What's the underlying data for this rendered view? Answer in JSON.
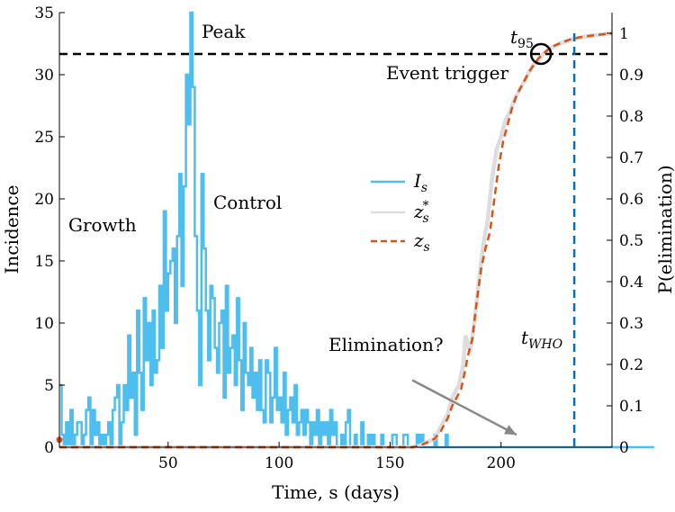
{
  "chart_data": {
    "type": "line",
    "xlabel": "Time, s (days)",
    "ylabel_left": "Incidence",
    "ylabel_right": "P(elimination)",
    "xlim": [
      1,
      250
    ],
    "ylim_left": [
      0,
      35
    ],
    "ylim_right": [
      0,
      1.05
    ],
    "xticks": [
      50,
      100,
      150,
      200
    ],
    "yticks_left": [
      0,
      5,
      10,
      15,
      20,
      25,
      30,
      35
    ],
    "yticks_right": [
      0,
      0.1,
      0.2,
      0.3,
      0.4,
      0.5,
      0.6,
      0.7,
      0.8,
      0.9,
      1
    ],
    "grid": false,
    "legend_position": "center",
    "series": [
      {
        "name": "I_s",
        "legend_main": "I",
        "legend_sub": "s",
        "style": "stairs",
        "axis": "left",
        "color": "#4DBEEE",
        "x_start": 1,
        "values": [
          5,
          1,
          0,
          2,
          0,
          3,
          0,
          1,
          2,
          2,
          0,
          1,
          3,
          4,
          0,
          3,
          1,
          2,
          0,
          1,
          0,
          1,
          2,
          0,
          3,
          4,
          5,
          0,
          2,
          5,
          3,
          9,
          4,
          6,
          1,
          11,
          6,
          3,
          12,
          7,
          10,
          5,
          11,
          6,
          7,
          13,
          8,
          19,
          11,
          14,
          15,
          16,
          10,
          17,
          22,
          13,
          21,
          30,
          26,
          35,
          29,
          17,
          11,
          5,
          22,
          16,
          11,
          7,
          13,
          12,
          8,
          6,
          10,
          11,
          4,
          13,
          6,
          8,
          9,
          5,
          12,
          7,
          3,
          10,
          6,
          5,
          8,
          4,
          6,
          3,
          7,
          3,
          2,
          7,
          6,
          2,
          4,
          8,
          3,
          4,
          2,
          6,
          1,
          3,
          4,
          2,
          5,
          1,
          2,
          3,
          1,
          3,
          2,
          0,
          2,
          1,
          3,
          0,
          2,
          1,
          2,
          0,
          3,
          1,
          2,
          0,
          0,
          1,
          0,
          2,
          3,
          0,
          0,
          1,
          0,
          0,
          2,
          0,
          0,
          1,
          0,
          1,
          0,
          0,
          0,
          1,
          0,
          0,
          0,
          0,
          1,
          1,
          0,
          0,
          0,
          1,
          1,
          0,
          0,
          0,
          0,
          1,
          0,
          1,
          0,
          0,
          0,
          0,
          0,
          1,
          0,
          0,
          0,
          0,
          1,
          0,
          0,
          0,
          0,
          0,
          0,
          0,
          0,
          0,
          0,
          0,
          0,
          0,
          0,
          0,
          0,
          0,
          0,
          0,
          0,
          0,
          0,
          0,
          0,
          0,
          0,
          0,
          0,
          0,
          0,
          0,
          0,
          0,
          0,
          0,
          0,
          0,
          0,
          0,
          0,
          0,
          0,
          0,
          0,
          0,
          0,
          0,
          0,
          0,
          0,
          0,
          0,
          0,
          0,
          0,
          0,
          0,
          0,
          0,
          0,
          0,
          0,
          0,
          0,
          0,
          0,
          0,
          0,
          0,
          0,
          0,
          0,
          0,
          0,
          0,
          0,
          0,
          0,
          0,
          0,
          0,
          0,
          0,
          0,
          0,
          0,
          0,
          0,
          0,
          0,
          0,
          0,
          0
        ]
      },
      {
        "name": "z_s^*",
        "legend_main": "z",
        "legend_sub": "s",
        "legend_sup": "*",
        "style": "line",
        "axis": "right",
        "color": "#dddddd",
        "points": [
          [
            1,
            0
          ],
          [
            160,
            0
          ],
          [
            163,
            0.003
          ],
          [
            166,
            0.01
          ],
          [
            170,
            0.02
          ],
          [
            173,
            0.05
          ],
          [
            176,
            0.08
          ],
          [
            178,
            0.12
          ],
          [
            181,
            0.15
          ],
          [
            183,
            0.2
          ],
          [
            184,
            0.27
          ],
          [
            186,
            0.23
          ],
          [
            188,
            0.3
          ],
          [
            190,
            0.4
          ],
          [
            192,
            0.49
          ],
          [
            194,
            0.55
          ],
          [
            196,
            0.65
          ],
          [
            198,
            0.72
          ],
          [
            200,
            0.75
          ],
          [
            202,
            0.79
          ],
          [
            204,
            0.81
          ],
          [
            206,
            0.84
          ],
          [
            208,
            0.86
          ],
          [
            210,
            0.88
          ],
          [
            212,
            0.9
          ],
          [
            214,
            0.92
          ],
          [
            216,
            0.93
          ],
          [
            218,
            0.945
          ],
          [
            220,
            0.955
          ],
          [
            222,
            0.963
          ],
          [
            225,
            0.972
          ],
          [
            228,
            0.978
          ],
          [
            232,
            0.985
          ],
          [
            236,
            0.99
          ],
          [
            240,
            0.994
          ],
          [
            245,
            0.997
          ],
          [
            250,
            1.0
          ]
        ]
      },
      {
        "name": "z_s",
        "legend_main": "z",
        "legend_sub": "s",
        "style": "dashed",
        "axis": "right",
        "color": "#D95319",
        "points": [
          [
            1,
            0
          ],
          [
            160,
            0
          ],
          [
            163,
            0.003
          ],
          [
            166,
            0.01
          ],
          [
            170,
            0.02
          ],
          [
            173,
            0.04
          ],
          [
            176,
            0.07
          ],
          [
            178,
            0.1
          ],
          [
            180,
            0.12
          ],
          [
            182,
            0.14
          ],
          [
            184,
            0.19
          ],
          [
            185,
            0.22
          ],
          [
            187,
            0.26
          ],
          [
            189,
            0.35
          ],
          [
            191,
            0.43
          ],
          [
            193,
            0.48
          ],
          [
            195,
            0.52
          ],
          [
            197,
            0.6
          ],
          [
            199,
            0.68
          ],
          [
            201,
            0.74
          ],
          [
            203,
            0.78
          ],
          [
            205,
            0.82
          ],
          [
            207,
            0.85
          ],
          [
            209,
            0.87
          ],
          [
            211,
            0.89
          ],
          [
            213,
            0.91
          ],
          [
            215,
            0.925
          ],
          [
            217,
            0.94
          ],
          [
            219,
            0.95
          ],
          [
            221,
            0.96
          ],
          [
            224,
            0.97
          ],
          [
            227,
            0.977
          ],
          [
            231,
            0.985
          ],
          [
            235,
            0.99
          ],
          [
            240,
            0.994
          ],
          [
            245,
            0.997
          ],
          [
            250,
            1.0
          ]
        ]
      }
    ],
    "reference_lines": [
      {
        "orientation": "horizontal",
        "axis": "right",
        "value": 0.95,
        "color": "#000000",
        "style": "dashed"
      },
      {
        "orientation": "vertical",
        "value": 233,
        "y_right_top": 1.0,
        "color": "#0072BD",
        "style": "dashed"
      }
    ],
    "markers": [
      {
        "shape": "circle",
        "x": 218,
        "y_right": 0.95,
        "color": "#000000"
      },
      {
        "shape": "dot",
        "x": 1,
        "y_left": 0.6,
        "color": "#D95319"
      }
    ],
    "arrow": {
      "x1": 160,
      "y1_left": 5.4,
      "x2": 207,
      "y2_left": 1.0,
      "color": "#888888"
    },
    "annotations": {
      "peak": "Peak",
      "growth": "Growth",
      "control": "Control",
      "event_trigger": "Event trigger",
      "elimination": "Elimination?",
      "t95_main": "t",
      "t95_sub": "95",
      "twho_main": "t",
      "twho_sub": "WHO"
    }
  }
}
